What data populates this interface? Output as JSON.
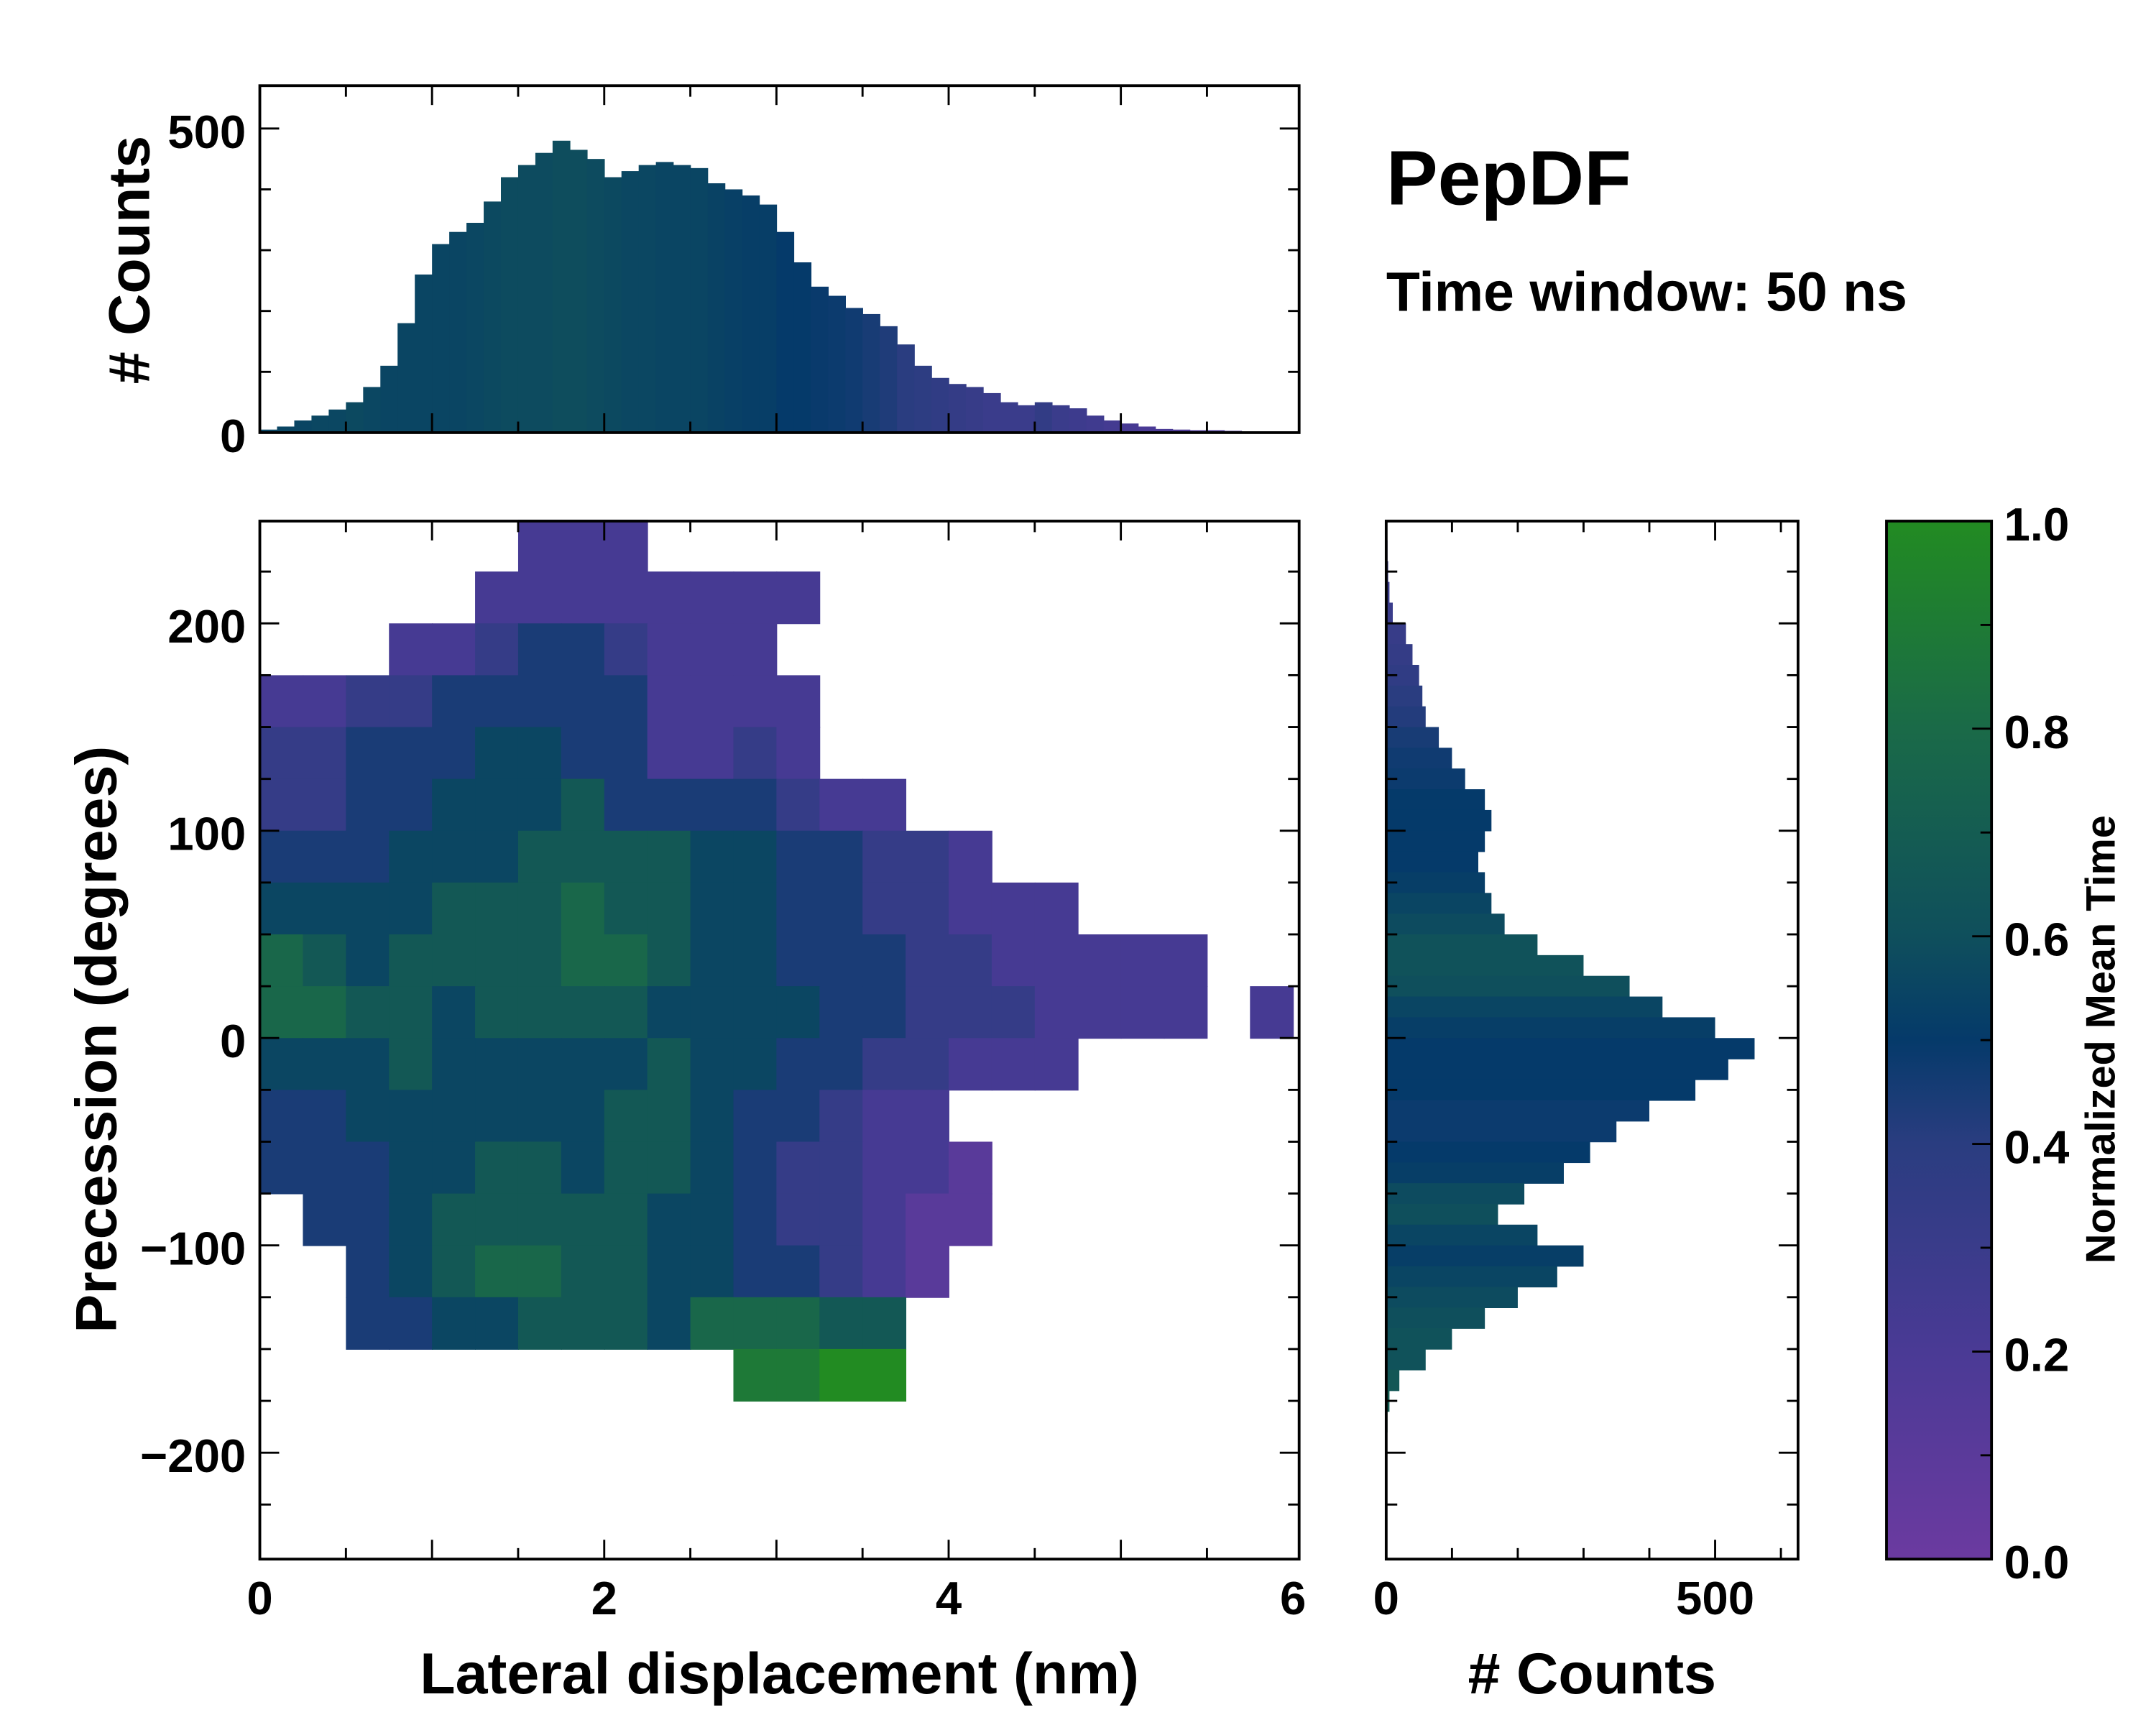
{
  "chart_data": {
    "type": "heatmap",
    "title": "PepDF",
    "subtitle": "Time window: 50 ns",
    "main": {
      "xlabel": "Lateral displacement (nm)",
      "ylabel": "Precession (degrees)",
      "xlim": [
        0,
        6.03
      ],
      "ylim": [
        -250,
        250
      ],
      "xticks": [
        "0",
        "2",
        "4",
        "6"
      ],
      "xtick_values": [
        0,
        2,
        4,
        6
      ],
      "yticks": [
        "200",
        "100",
        "0",
        "−100",
        "−200"
      ],
      "ytick_values": [
        200,
        100,
        0,
        -100,
        -200
      ],
      "grid_x_bin": 0.25,
      "grid_y_bin": 25,
      "grid_y_top": 250,
      "grid_rows": [
        "......222...............",
        ".....22222222...........",
        "...223443222............",
        "2233444442222...........",
        "3344455442232...........",
        "334455564444322.........",
        "44455566665544332.......",
        "5555666766554433222.....",
        "7656666776554443322222..",
        "7766566665555443332222.2",
        "5556555556554433222.....",
        "4455555566544322........",
        "44455665665433221.......",
        ".4456666655433211.......",
        "..45677665544321........",
        "..4455666577766.........",
        "...........8899.........",
        "........................",
        "........................",
        "........................"
      ]
    },
    "top_hist": {
      "ylabel": "# Counts",
      "ylim": [
        0,
        571
      ],
      "yticks": [
        "0",
        "500"
      ],
      "ytick_values": [
        0,
        500
      ],
      "bin_width": 0.1,
      "values": [
        5,
        10,
        20,
        28,
        38,
        50,
        75,
        110,
        180,
        260,
        310,
        330,
        345,
        380,
        420,
        440,
        460,
        480,
        465,
        450,
        420,
        430,
        440,
        445,
        440,
        435,
        410,
        400,
        390,
        375,
        330,
        280,
        240,
        225,
        205,
        195,
        175,
        145,
        110,
        90,
        80,
        75,
        65,
        50,
        45,
        50,
        45,
        40,
        28,
        20,
        15,
        10,
        6,
        5,
        4,
        4,
        3,
        2,
        1,
        0
      ],
      "mean_time": [
        0.55,
        0.55,
        0.55,
        0.56,
        0.56,
        0.57,
        0.56,
        0.55,
        0.55,
        0.55,
        0.55,
        0.55,
        0.56,
        0.57,
        0.58,
        0.58,
        0.58,
        0.59,
        0.59,
        0.58,
        0.57,
        0.56,
        0.56,
        0.55,
        0.55,
        0.55,
        0.54,
        0.53,
        0.52,
        0.52,
        0.5,
        0.5,
        0.49,
        0.48,
        0.47,
        0.45,
        0.43,
        0.4,
        0.38,
        0.36,
        0.34,
        0.32,
        0.3,
        0.3,
        0.3,
        0.35,
        0.3,
        0.28,
        0.26,
        0.24,
        0.22,
        0.2,
        0.2,
        0.18,
        0.18,
        0.18,
        0.18,
        0.18,
        0.18,
        0.18
      ]
    },
    "right_hist": {
      "xlabel": "# Counts",
      "xlim": [
        0,
        626
      ],
      "xticks": [
        "0",
        "500"
      ],
      "xtick_values": [
        0,
        500
      ],
      "bin_width": 10,
      "bin_top": 250,
      "values": [
        0,
        2,
        3,
        5,
        10,
        30,
        40,
        50,
        55,
        60,
        80,
        100,
        120,
        150,
        160,
        150,
        140,
        150,
        160,
        180,
        230,
        300,
        370,
        420,
        500,
        560,
        520,
        470,
        400,
        350,
        310,
        270,
        210,
        170,
        230,
        300,
        260,
        200,
        150,
        100,
        60,
        20,
        5,
        2,
        0,
        0,
        0,
        0,
        0,
        0
      ],
      "mean_time": [
        0.3,
        0.3,
        0.3,
        0.3,
        0.3,
        0.32,
        0.34,
        0.36,
        0.4,
        0.42,
        0.45,
        0.47,
        0.48,
        0.5,
        0.5,
        0.5,
        0.5,
        0.52,
        0.55,
        0.58,
        0.62,
        0.62,
        0.6,
        0.55,
        0.52,
        0.5,
        0.5,
        0.5,
        0.48,
        0.48,
        0.5,
        0.52,
        0.58,
        0.6,
        0.55,
        0.52,
        0.55,
        0.58,
        0.6,
        0.62,
        0.62,
        0.66,
        0.7,
        0.75,
        0.8,
        0.8,
        0.8,
        0.8,
        0.8,
        0.8
      ]
    },
    "colorbar": {
      "label": "Normalized Mean Time",
      "ticks": [
        "0.0",
        "0.2",
        "0.4",
        "0.6",
        "0.8",
        "1.0"
      ],
      "tick_values": [
        0,
        0.2,
        0.4,
        0.6,
        0.8,
        1.0
      ],
      "colors": [
        "#6b3aa0",
        "#4a3a95",
        "#2a3d80",
        "#053a6a",
        "#0f4f5c",
        "#1a6a48",
        "#228b22"
      ]
    }
  }
}
